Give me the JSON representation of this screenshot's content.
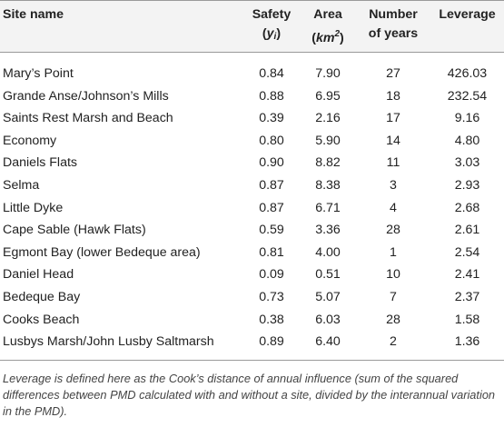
{
  "table": {
    "headers": {
      "site_name": "Site name",
      "safety_line1": "Safety",
      "safety_symbol_open": "(",
      "safety_symbol_var": "y",
      "safety_symbol_sub": "i",
      "safety_symbol_close": ")",
      "area_line1": "Area",
      "area_unit_open": "(",
      "area_unit": "km",
      "area_unit_sup": "2",
      "area_unit_close": ")",
      "years_line1": "Number",
      "years_line2": "of years",
      "leverage": "Leverage"
    },
    "rows": [
      {
        "site": "Mary’s Point",
        "safety": "0.84",
        "area": "7.90",
        "years": "27",
        "leverage": "426.03"
      },
      {
        "site": "Grande Anse/Johnson’s Mills",
        "safety": "0.88",
        "area": "6.95",
        "years": "18",
        "leverage": "232.54"
      },
      {
        "site": "Saints Rest Marsh and Beach",
        "safety": "0.39",
        "area": "2.16",
        "years": "17",
        "leverage": "9.16"
      },
      {
        "site": "Economy",
        "safety": "0.80",
        "area": "5.90",
        "years": "14",
        "leverage": "4.80"
      },
      {
        "site": "Daniels Flats",
        "safety": "0.90",
        "area": "8.82",
        "years": "11",
        "leverage": "3.03"
      },
      {
        "site": "Selma",
        "safety": "0.87",
        "area": "8.38",
        "years": "3",
        "leverage": "2.93"
      },
      {
        "site": "Little Dyke",
        "safety": "0.87",
        "area": "6.71",
        "years": "4",
        "leverage": "2.68"
      },
      {
        "site": "Cape Sable (Hawk Flats)",
        "safety": "0.59",
        "area": "3.36",
        "years": "28",
        "leverage": "2.61"
      },
      {
        "site": "Egmont Bay (lower Bedeque area)",
        "safety": "0.81",
        "area": "4.00",
        "years": "1",
        "leverage": "2.54"
      },
      {
        "site": "Daniel Head",
        "safety": "0.09",
        "area": "0.51",
        "years": "10",
        "leverage": "2.41"
      },
      {
        "site": "Bedeque Bay",
        "safety": "0.73",
        "area": "5.07",
        "years": "7",
        "leverage": "2.37"
      },
      {
        "site": "Cooks Beach",
        "safety": "0.38",
        "area": "6.03",
        "years": "28",
        "leverage": "1.58"
      },
      {
        "site": "Lusbys Marsh/John Lusby Saltmarsh",
        "safety": "0.89",
        "area": "6.40",
        "years": "2",
        "leverage": "1.36"
      }
    ]
  },
  "footnote": "Leverage is defined here as the Cook’s distance of annual influence (sum of the squared differences between PMD calculated with and without a site, divided by the interannual variation in the PMD)."
}
